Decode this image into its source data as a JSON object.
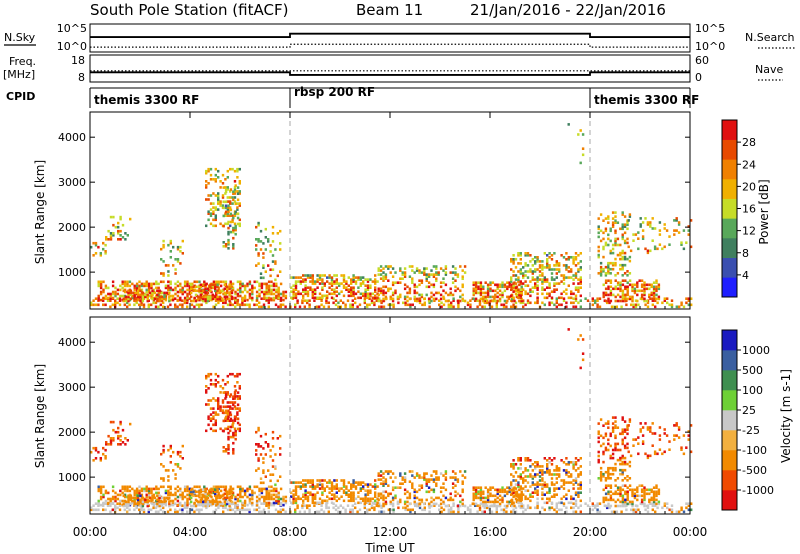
{
  "title": {
    "station": "South Pole Station (fitACF)",
    "beam": "Beam 11",
    "dates": "21/Jan/2016 - 22/Jan/2016"
  },
  "colors": {
    "power": [
      "#1f1fff",
      "#3a4fb0",
      "#3f7f5f",
      "#58a85a",
      "#c6dc28",
      "#f0b000",
      "#f08000",
      "#e84a00",
      "#e01010"
    ],
    "velocity": [
      "#e01010",
      "#f04a00",
      "#f28a00",
      "#f2b040",
      "#c8c8c8",
      "#6ed036",
      "#3f8f50",
      "#3a5fa0",
      "#1a1ac0"
    ]
  },
  "chart_data": [
    {
      "type": "line",
      "name": "status-nsky-nsearch",
      "left_label": "N.Sky",
      "left_ticks": [
        "10^5",
        "10^0"
      ],
      "right_ticks": [
        "10^5",
        "10^0"
      ],
      "right_label": "N.Search",
      "x": [
        "00:00",
        "08:00",
        "20:00",
        "00:00"
      ],
      "series": [
        {
          "name": "N.Sky",
          "values_log10": [
            2.7,
            3.4,
            2.7,
            2.7
          ]
        },
        {
          "name": "N.Search",
          "values_log10": [
            0.6,
            1.2,
            0.6,
            0.6
          ]
        }
      ]
    },
    {
      "type": "line",
      "name": "status-freq-nave",
      "left_label": "Freq.",
      "left_unit": "[MHz]",
      "left_ticks": [
        "18",
        "8"
      ],
      "right_ticks": [
        "60",
        "0"
      ],
      "right_label": "Nave",
      "x_hours": [
        0,
        8,
        20,
        24
      ],
      "series": [
        {
          "name": "Freq.",
          "values": [
            11.5,
            10.3,
            11.5,
            11.5
          ]
        },
        {
          "name": "Nave",
          "values": [
            25,
            25,
            25,
            25
          ]
        }
      ]
    },
    {
      "type": "table",
      "name": "cpid",
      "label": "CPID",
      "segments": [
        {
          "start": 0,
          "end": 8,
          "text": "themis 3300 RF"
        },
        {
          "start": 8,
          "end": 20,
          "text": "rbsp 200 RF"
        },
        {
          "start": 20,
          "end": 24,
          "text": "themis 3300 RF"
        }
      ]
    },
    {
      "type": "heatmap",
      "name": "power",
      "ylabel": "Slant Range [km]",
      "ylim": [
        180,
        4560
      ],
      "yticks": [
        1000,
        2000,
        3000,
        4000
      ],
      "colorbar_label": "Power [dB]",
      "colorbar_ticks": [
        4,
        8,
        12,
        16,
        20,
        24,
        28
      ],
      "colorbar_range": [
        0,
        32
      ]
    },
    {
      "type": "heatmap",
      "name": "velocity",
      "ylabel": "Slant Range [km]",
      "ylim": [
        180,
        4560
      ],
      "yticks": [
        1000,
        2000,
        3000,
        4000
      ],
      "colorbar_label": "Velocity [m s-1]",
      "colorbar_ticks": [
        "1000",
        "500",
        "100",
        "25",
        "-25",
        "-100",
        "-500",
        "-1000"
      ]
    }
  ],
  "x_axis": {
    "label": "Time UT",
    "ticks": [
      "00:00",
      "04:00",
      "08:00",
      "12:00",
      "16:00",
      "20:00",
      "00:00"
    ],
    "hours": [
      0,
      4,
      8,
      12,
      16,
      20,
      24
    ],
    "mode_changes": [
      8,
      20
    ]
  },
  "echo_regions": [
    {
      "t0": 0.0,
      "t1": 24.0,
      "r0": 200,
      "r1": 420,
      "density": 0.55
    },
    {
      "t0": 0.3,
      "t1": 7.8,
      "r0": 350,
      "r1": 760,
      "density": 0.8
    },
    {
      "t0": 1.3,
      "t1": 3.2,
      "r0": 330,
      "r1": 600,
      "density": 0.95
    },
    {
      "t0": 4.0,
      "t1": 5.7,
      "r0": 330,
      "r1": 700,
      "density": 0.9
    },
    {
      "t0": 0.0,
      "t1": 0.6,
      "r0": 1300,
      "r1": 1700,
      "density": 0.35
    },
    {
      "t0": 0.6,
      "t1": 1.6,
      "r0": 1700,
      "r1": 2200,
      "density": 0.35
    },
    {
      "t0": 2.8,
      "t1": 3.8,
      "r0": 850,
      "r1": 1700,
      "density": 0.25
    },
    {
      "t0": 4.6,
      "t1": 6.0,
      "r0": 2000,
      "r1": 3300,
      "density": 0.45
    },
    {
      "t0": 5.3,
      "t1": 5.9,
      "r0": 1500,
      "r1": 2900,
      "density": 0.35
    },
    {
      "t0": 6.6,
      "t1": 7.6,
      "r0": 800,
      "r1": 2100,
      "density": 0.25
    },
    {
      "t0": 8.0,
      "t1": 11.5,
      "r0": 400,
      "r1": 900,
      "density": 0.9
    },
    {
      "t0": 11.5,
      "t1": 15.0,
      "r0": 330,
      "r1": 1100,
      "density": 0.55
    },
    {
      "t0": 15.3,
      "t1": 17.3,
      "r0": 330,
      "r1": 760,
      "density": 0.9
    },
    {
      "t0": 16.8,
      "t1": 19.6,
      "r0": 400,
      "r1": 1400,
      "density": 0.6
    },
    {
      "t0": 19.1,
      "t1": 19.7,
      "r0": 3400,
      "r1": 4500,
      "density": 0.15
    },
    {
      "t0": 20.3,
      "t1": 21.6,
      "r0": 900,
      "r1": 2300,
      "density": 0.55
    },
    {
      "t0": 20.5,
      "t1": 22.8,
      "r0": 330,
      "r1": 800,
      "density": 0.85
    },
    {
      "t0": 21.5,
      "t1": 24.0,
      "r0": 1400,
      "r1": 2200,
      "density": 0.2
    }
  ]
}
